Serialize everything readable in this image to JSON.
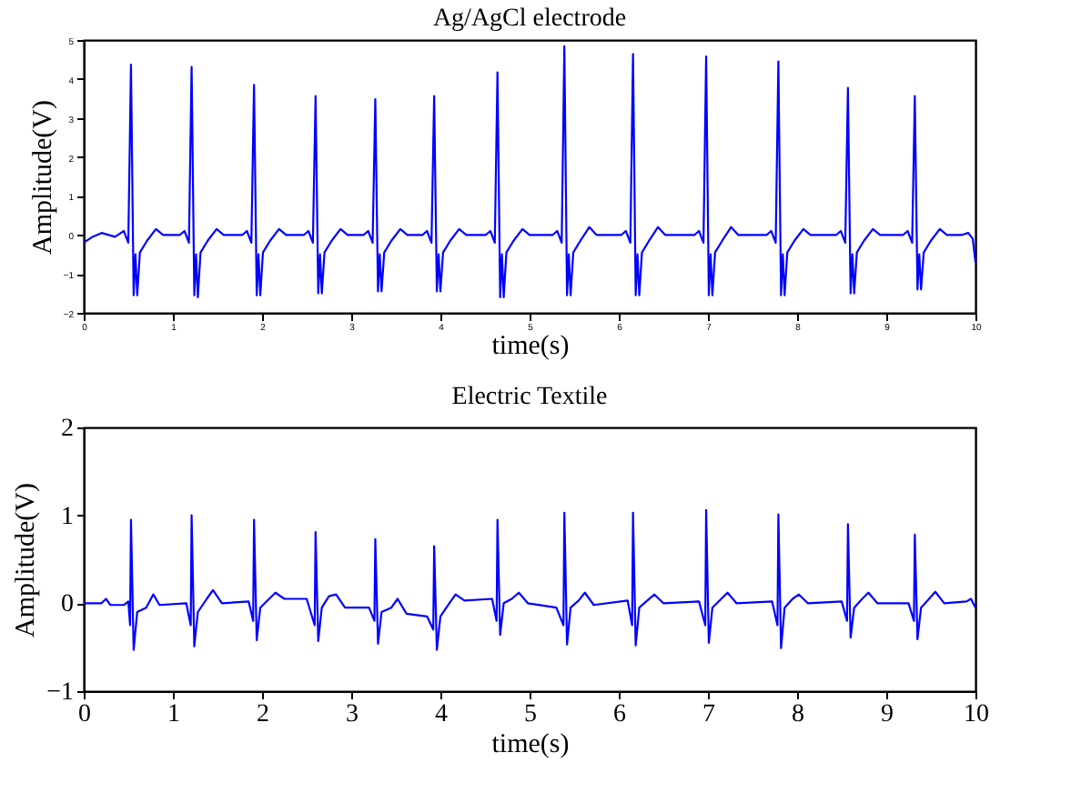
{
  "chart_data": [
    {
      "type": "line",
      "title": "Ag/AgCl electrode",
      "xlabel": "time(s)",
      "ylabel": "Amplitude(V)",
      "xlim": [
        0,
        10
      ],
      "xticks": [
        0,
        1,
        2,
        3,
        4,
        5,
        6,
        7,
        8,
        9,
        10
      ],
      "ylim": [
        -2,
        5
      ],
      "yticks": [
        -2,
        -1,
        0,
        1,
        2,
        3,
        4,
        5
      ],
      "grid": false,
      "marker": "none",
      "line_style": "solid",
      "series": [
        {
          "color": "#0000ff",
          "x": [
            0,
            0.1,
            0.2,
            0.35,
            0.45,
            0.5,
            0.53,
            0.56,
            0.58,
            0.6,
            0.63,
            0.71,
            0.81,
            0.89,
            1.08,
            1.13,
            1.18,
            1.21,
            1.24,
            1.26,
            1.28,
            1.31,
            1.39,
            1.49,
            1.57,
            1.78,
            1.83,
            1.88,
            1.91,
            1.94,
            1.96,
            1.98,
            2.01,
            2.09,
            2.19,
            2.27,
            2.47,
            2.52,
            2.57,
            2.6,
            2.63,
            2.65,
            2.67,
            2.7,
            2.78,
            2.88,
            2.96,
            3.14,
            3.19,
            3.24,
            3.27,
            3.3,
            3.32,
            3.34,
            3.37,
            3.45,
            3.55,
            3.63,
            3.8,
            3.85,
            3.9,
            3.93,
            3.96,
            3.98,
            4.0,
            4.03,
            4.11,
            4.21,
            4.29,
            4.51,
            4.56,
            4.61,
            4.64,
            4.67,
            4.69,
            4.71,
            4.74,
            4.82,
            4.92,
            5.0,
            5.26,
            5.31,
            5.36,
            5.39,
            5.42,
            5.44,
            5.46,
            5.49,
            5.57,
            5.67,
            5.75,
            6.03,
            6.08,
            6.13,
            6.16,
            6.19,
            6.21,
            6.23,
            6.26,
            6.34,
            6.44,
            6.52,
            6.85,
            6.9,
            6.95,
            6.98,
            7.01,
            7.03,
            7.05,
            7.08,
            7.16,
            7.26,
            7.34,
            7.66,
            7.71,
            7.76,
            7.79,
            7.82,
            7.84,
            7.86,
            7.89,
            7.97,
            8.07,
            8.15,
            8.44,
            8.49,
            8.54,
            8.57,
            8.6,
            8.62,
            8.64,
            8.67,
            8.75,
            8.85,
            8.93,
            9.19,
            9.24,
            9.29,
            9.32,
            9.35,
            9.37,
            9.39,
            9.42,
            9.5,
            9.6,
            9.68,
            9.85,
            9.92,
            9.97,
            10
          ],
          "values": [
            -0.2,
            -0.05,
            0.05,
            -0.05,
            0.1,
            -0.2,
            4.37,
            -1.55,
            -0.5,
            -1.55,
            -0.45,
            -0.15,
            0.15,
            0.0,
            0.0,
            0.1,
            -0.2,
            4.31,
            -1.55,
            -0.5,
            -1.6,
            -0.45,
            -0.15,
            0.15,
            0.0,
            0.0,
            0.1,
            -0.2,
            3.85,
            -1.55,
            -0.5,
            -1.55,
            -0.45,
            -0.15,
            0.15,
            0.0,
            0.0,
            0.1,
            -0.2,
            3.56,
            -1.5,
            -0.5,
            -1.5,
            -0.45,
            -0.15,
            0.15,
            0.0,
            0.0,
            0.1,
            -0.2,
            3.48,
            -1.45,
            -0.5,
            -1.45,
            -0.45,
            -0.15,
            0.15,
            0.0,
            0.0,
            0.1,
            -0.2,
            3.56,
            -1.45,
            -0.5,
            -1.45,
            -0.45,
            -0.15,
            0.15,
            0.0,
            0.0,
            0.1,
            -0.2,
            4.17,
            -1.6,
            -0.5,
            -1.6,
            -0.45,
            -0.15,
            0.15,
            0.0,
            0.0,
            0.1,
            -0.2,
            4.84,
            -1.55,
            -0.5,
            -1.55,
            -0.45,
            -0.15,
            0.2,
            0.0,
            0.0,
            0.1,
            -0.2,
            4.64,
            -1.55,
            -0.5,
            -1.55,
            -0.45,
            -0.15,
            0.2,
            0.0,
            0.0,
            0.1,
            -0.2,
            4.58,
            -1.55,
            -0.5,
            -1.55,
            -0.45,
            -0.15,
            0.2,
            0.0,
            0.0,
            0.1,
            -0.2,
            4.45,
            -1.55,
            -0.5,
            -1.55,
            -0.45,
            -0.15,
            0.15,
            0.0,
            0.0,
            0.1,
            -0.2,
            3.77,
            -1.5,
            -0.5,
            -1.5,
            -0.45,
            -0.15,
            0.15,
            0.0,
            0.0,
            0.1,
            -0.2,
            3.56,
            -1.4,
            -0.5,
            -1.4,
            -0.45,
            -0.15,
            0.15,
            0.0,
            0.0,
            0.05,
            -0.1,
            -0.7
          ]
        }
      ]
    },
    {
      "type": "line",
      "title": "Electric Textile",
      "xlabel": "time(s)",
      "ylabel": "Amplitude(V)",
      "xlim": [
        0,
        10
      ],
      "xticks": [
        0,
        1,
        2,
        3,
        4,
        5,
        6,
        7,
        8,
        9,
        10
      ],
      "ylim": [
        -1,
        2
      ],
      "yticks": [
        -1,
        0,
        1,
        2
      ],
      "grid": false,
      "marker": "none",
      "line_style": "solid",
      "series": [
        {
          "color": "#0000ff",
          "x": [
            0,
            0.2,
            0.25,
            0.3,
            0.45,
            0.5,
            0.52,
            0.53,
            0.56,
            0.6,
            0.7,
            0.78,
            0.85,
            1.15,
            1.2,
            1.21,
            1.24,
            1.28,
            1.38,
            1.45,
            1.55,
            1.85,
            1.9,
            1.91,
            1.94,
            1.98,
            2.08,
            2.15,
            2.25,
            2.5,
            2.59,
            2.6,
            2.63,
            2.67,
            2.75,
            2.83,
            2.93,
            3.2,
            3.26,
            3.27,
            3.3,
            3.34,
            3.45,
            3.52,
            3.62,
            3.85,
            3.92,
            3.93,
            3.96,
            4.0,
            4.1,
            4.17,
            4.27,
            4.58,
            4.63,
            4.64,
            4.67,
            4.71,
            4.8,
            4.88,
            4.98,
            5.3,
            5.38,
            5.39,
            5.42,
            5.46,
            5.55,
            5.62,
            5.72,
            6.1,
            6.15,
            6.16,
            6.19,
            6.23,
            6.32,
            6.4,
            6.5,
            6.9,
            6.97,
            6.98,
            7.01,
            7.05,
            7.15,
            7.22,
            7.32,
            7.72,
            7.78,
            7.79,
            7.82,
            7.86,
            7.95,
            8.02,
            8.12,
            8.5,
            8.56,
            8.57,
            8.6,
            8.64,
            8.73,
            8.8,
            8.9,
            9.25,
            9.31,
            9.32,
            9.35,
            9.39,
            9.48,
            9.55,
            9.65,
            9.9,
            9.95,
            10
          ],
          "values": [
            0.0,
            0.0,
            0.05,
            -0.02,
            -0.02,
            0.02,
            -0.25,
            0.95,
            -0.53,
            -0.1,
            -0.05,
            0.1,
            -0.02,
            0.0,
            -0.25,
            1.0,
            -0.49,
            -0.1,
            0.05,
            0.15,
            0.0,
            0.02,
            -0.2,
            0.95,
            -0.42,
            -0.05,
            0.05,
            0.12,
            0.05,
            0.05,
            -0.25,
            0.81,
            -0.43,
            -0.05,
            0.08,
            0.1,
            -0.05,
            -0.05,
            -0.2,
            0.73,
            -0.46,
            -0.1,
            -0.05,
            0.05,
            -0.12,
            -0.15,
            -0.3,
            0.65,
            -0.53,
            -0.15,
            0.0,
            0.1,
            0.03,
            0.05,
            -0.2,
            0.95,
            -0.36,
            0.0,
            0.05,
            0.12,
            0.0,
            -0.05,
            -0.25,
            1.03,
            -0.47,
            -0.05,
            0.03,
            0.12,
            -0.02,
            0.03,
            -0.25,
            1.03,
            -0.48,
            -0.05,
            0.03,
            0.1,
            0.0,
            0.02,
            -0.25,
            1.06,
            -0.45,
            -0.05,
            0.05,
            0.12,
            0.0,
            0.02,
            -0.25,
            1.01,
            -0.51,
            -0.05,
            0.05,
            0.1,
            0.0,
            0.02,
            -0.2,
            0.9,
            -0.39,
            -0.05,
            0.05,
            0.12,
            0.0,
            0.0,
            -0.2,
            0.78,
            -0.41,
            -0.05,
            0.05,
            0.13,
            0.0,
            0.02,
            0.05,
            -0.05
          ]
        }
      ]
    }
  ]
}
